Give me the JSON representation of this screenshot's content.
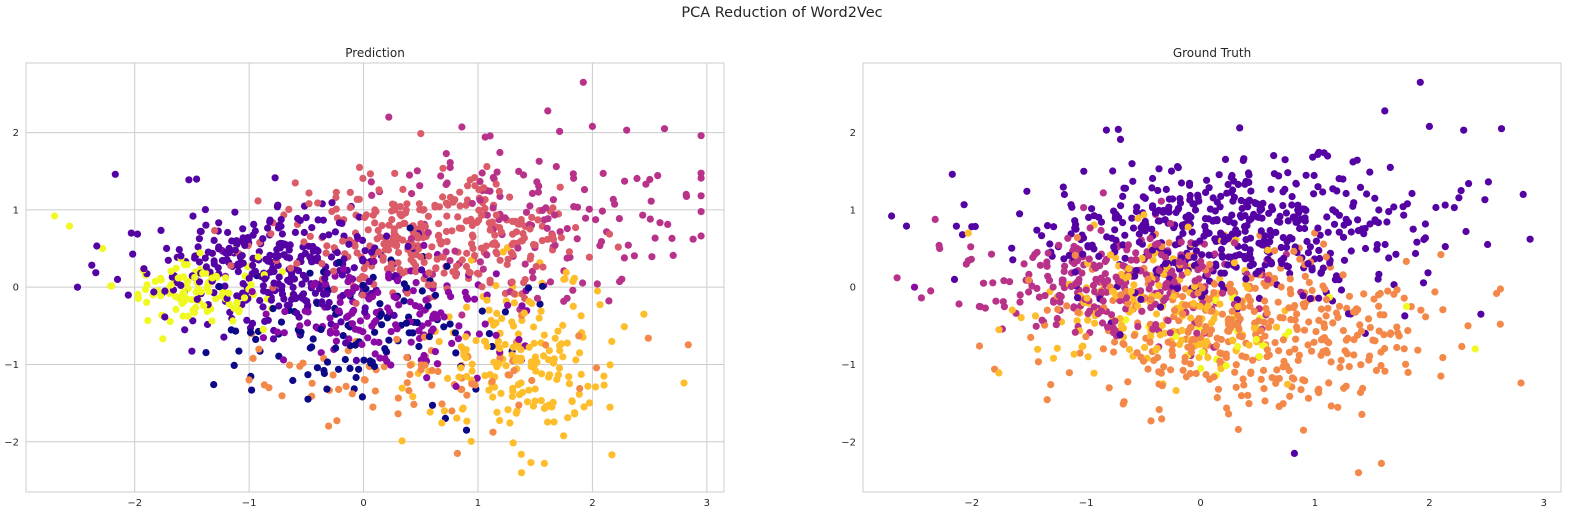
{
  "figure": {
    "title": "PCA Reduction of Word2Vec"
  },
  "palette": {
    "c0": "#0d0887",
    "c1": "#5402a3",
    "c2": "#8b0aa5",
    "c3": "#b93289",
    "c4": "#db5c68",
    "c5": "#f48849",
    "c6": "#febd2a",
    "c7": "#f0f921"
  },
  "chart_data": [
    {
      "type": "scatter",
      "title": "Prediction",
      "xlim": [
        -2.95,
        3.15
      ],
      "ylim": [
        -2.65,
        2.9
      ],
      "xticks": [
        -2,
        -1,
        0,
        1,
        2,
        3
      ],
      "yticks": [
        -2,
        -1,
        0,
        1,
        2
      ],
      "xtick_labels": [
        "−2",
        "−1",
        "0",
        "1",
        "2",
        "3"
      ],
      "ytick_labels": [
        "−2",
        "−1",
        "0",
        "1",
        "2"
      ],
      "grid": true,
      "clusters": [
        {
          "color": "c7",
          "center": [
            -1.4,
            0.0
          ],
          "spread": [
            0.3,
            0.22
          ],
          "count": 110
        },
        {
          "color": "c1",
          "center": [
            -0.8,
            0.25
          ],
          "spread": [
            0.55,
            0.4
          ],
          "count": 320
        },
        {
          "color": "c0",
          "center": [
            0.0,
            -0.6
          ],
          "spread": [
            0.6,
            0.45
          ],
          "count": 120
        },
        {
          "color": "c2",
          "center": [
            0.2,
            -0.35
          ],
          "spread": [
            0.55,
            0.35
          ],
          "count": 160
        },
        {
          "color": "c4",
          "center": [
            0.6,
            0.65
          ],
          "spread": [
            0.6,
            0.4
          ],
          "count": 330
        },
        {
          "color": "c3",
          "center": [
            1.5,
            0.9
          ],
          "spread": [
            0.65,
            0.6
          ],
          "count": 140
        },
        {
          "color": "c6",
          "center": [
            1.4,
            -1.0
          ],
          "spread": [
            0.4,
            0.55
          ],
          "count": 190
        },
        {
          "color": "c5",
          "center": [
            0.4,
            -1.1
          ],
          "spread": [
            0.8,
            0.3
          ],
          "count": 80
        }
      ],
      "points": [
        [
          -2.7,
          0.92,
          "c7"
        ],
        [
          -2.57,
          0.79,
          "c7"
        ],
        [
          -2.28,
          0.5,
          "c7"
        ],
        [
          -2.5,
          0.0,
          "c1"
        ],
        [
          -2.17,
          1.46,
          "c1"
        ],
        [
          -2.15,
          0.1,
          "c1"
        ],
        [
          -2.03,
          0.7,
          "c1"
        ],
        [
          -1.31,
          -1.26,
          "c0"
        ],
        [
          1.92,
          2.65,
          "c3"
        ],
        [
          1.61,
          2.28,
          "c3"
        ],
        [
          2.0,
          2.08,
          "c3"
        ],
        [
          2.63,
          2.05,
          "c3"
        ],
        [
          2.3,
          2.03,
          "c3"
        ],
        [
          2.82,
          1.2,
          "c3"
        ],
        [
          2.88,
          0.62,
          "c3"
        ],
        [
          2.8,
          -1.24,
          "c6"
        ],
        [
          1.38,
          -2.4,
          "c6"
        ],
        [
          1.58,
          -2.28,
          "c6"
        ],
        [
          0.82,
          -2.15,
          "c5"
        ],
        [
          0.9,
          -1.85,
          "c0"
        ],
        [
          2.45,
          -0.35,
          "c6"
        ],
        [
          2.1,
          -1.15,
          "c6"
        ]
      ]
    },
    {
      "type": "scatter",
      "title": "Ground Truth",
      "xlim": [
        -2.95,
        3.15
      ],
      "ylim": [
        -2.65,
        2.9
      ],
      "xticks": [
        -2,
        -1,
        0,
        1,
        2,
        3
      ],
      "yticks": [
        -2,
        -1,
        0,
        1,
        2
      ],
      "xtick_labels": [
        "−2",
        "−1",
        "0",
        "1",
        "2",
        "3"
      ],
      "ytick_labels": [
        "−2",
        "−1",
        "0",
        "1",
        "2"
      ],
      "grid": false,
      "clusters": [
        {
          "color": "c1",
          "center": [
            0.3,
            0.75
          ],
          "spread": [
            0.85,
            0.45
          ],
          "count": 520
        },
        {
          "color": "c3",
          "center": [
            -0.75,
            0.05
          ],
          "spread": [
            0.6,
            0.35
          ],
          "count": 260
        },
        {
          "color": "c5",
          "center": [
            0.4,
            -0.55
          ],
          "spread": [
            0.75,
            0.55
          ],
          "count": 420
        },
        {
          "color": "c6",
          "center": [
            -0.3,
            -0.3
          ],
          "spread": [
            0.55,
            0.45
          ],
          "count": 170
        },
        {
          "color": "c7",
          "center": [
            0.2,
            -0.6
          ],
          "spread": [
            0.5,
            0.3
          ],
          "count": 30
        }
      ],
      "points": [
        [
          -2.7,
          0.92,
          "c1"
        ],
        [
          -2.57,
          0.79,
          "c1"
        ],
        [
          -2.28,
          0.5,
          "c3"
        ],
        [
          -2.5,
          0.0,
          "c2"
        ],
        [
          -2.17,
          1.46,
          "c1"
        ],
        [
          -2.15,
          0.1,
          "c1"
        ],
        [
          -2.03,
          0.7,
          "c6"
        ],
        [
          -1.31,
          -1.26,
          "c5"
        ],
        [
          1.92,
          2.65,
          "c1"
        ],
        [
          1.61,
          2.28,
          "c1"
        ],
        [
          2.0,
          2.08,
          "c1"
        ],
        [
          2.63,
          2.05,
          "c1"
        ],
        [
          2.3,
          2.03,
          "c1"
        ],
        [
          2.82,
          1.2,
          "c1"
        ],
        [
          2.88,
          0.62,
          "c1"
        ],
        [
          2.8,
          -1.24,
          "c5"
        ],
        [
          1.38,
          -2.4,
          "c5"
        ],
        [
          1.58,
          -2.28,
          "c5"
        ],
        [
          0.82,
          -2.15,
          "c1"
        ],
        [
          0.9,
          -1.85,
          "c5"
        ],
        [
          2.45,
          -0.35,
          "c1"
        ],
        [
          2.1,
          -1.15,
          "c5"
        ],
        [
          2.4,
          -0.8,
          "c7"
        ],
        [
          1.8,
          -0.25,
          "c7"
        ]
      ]
    }
  ]
}
